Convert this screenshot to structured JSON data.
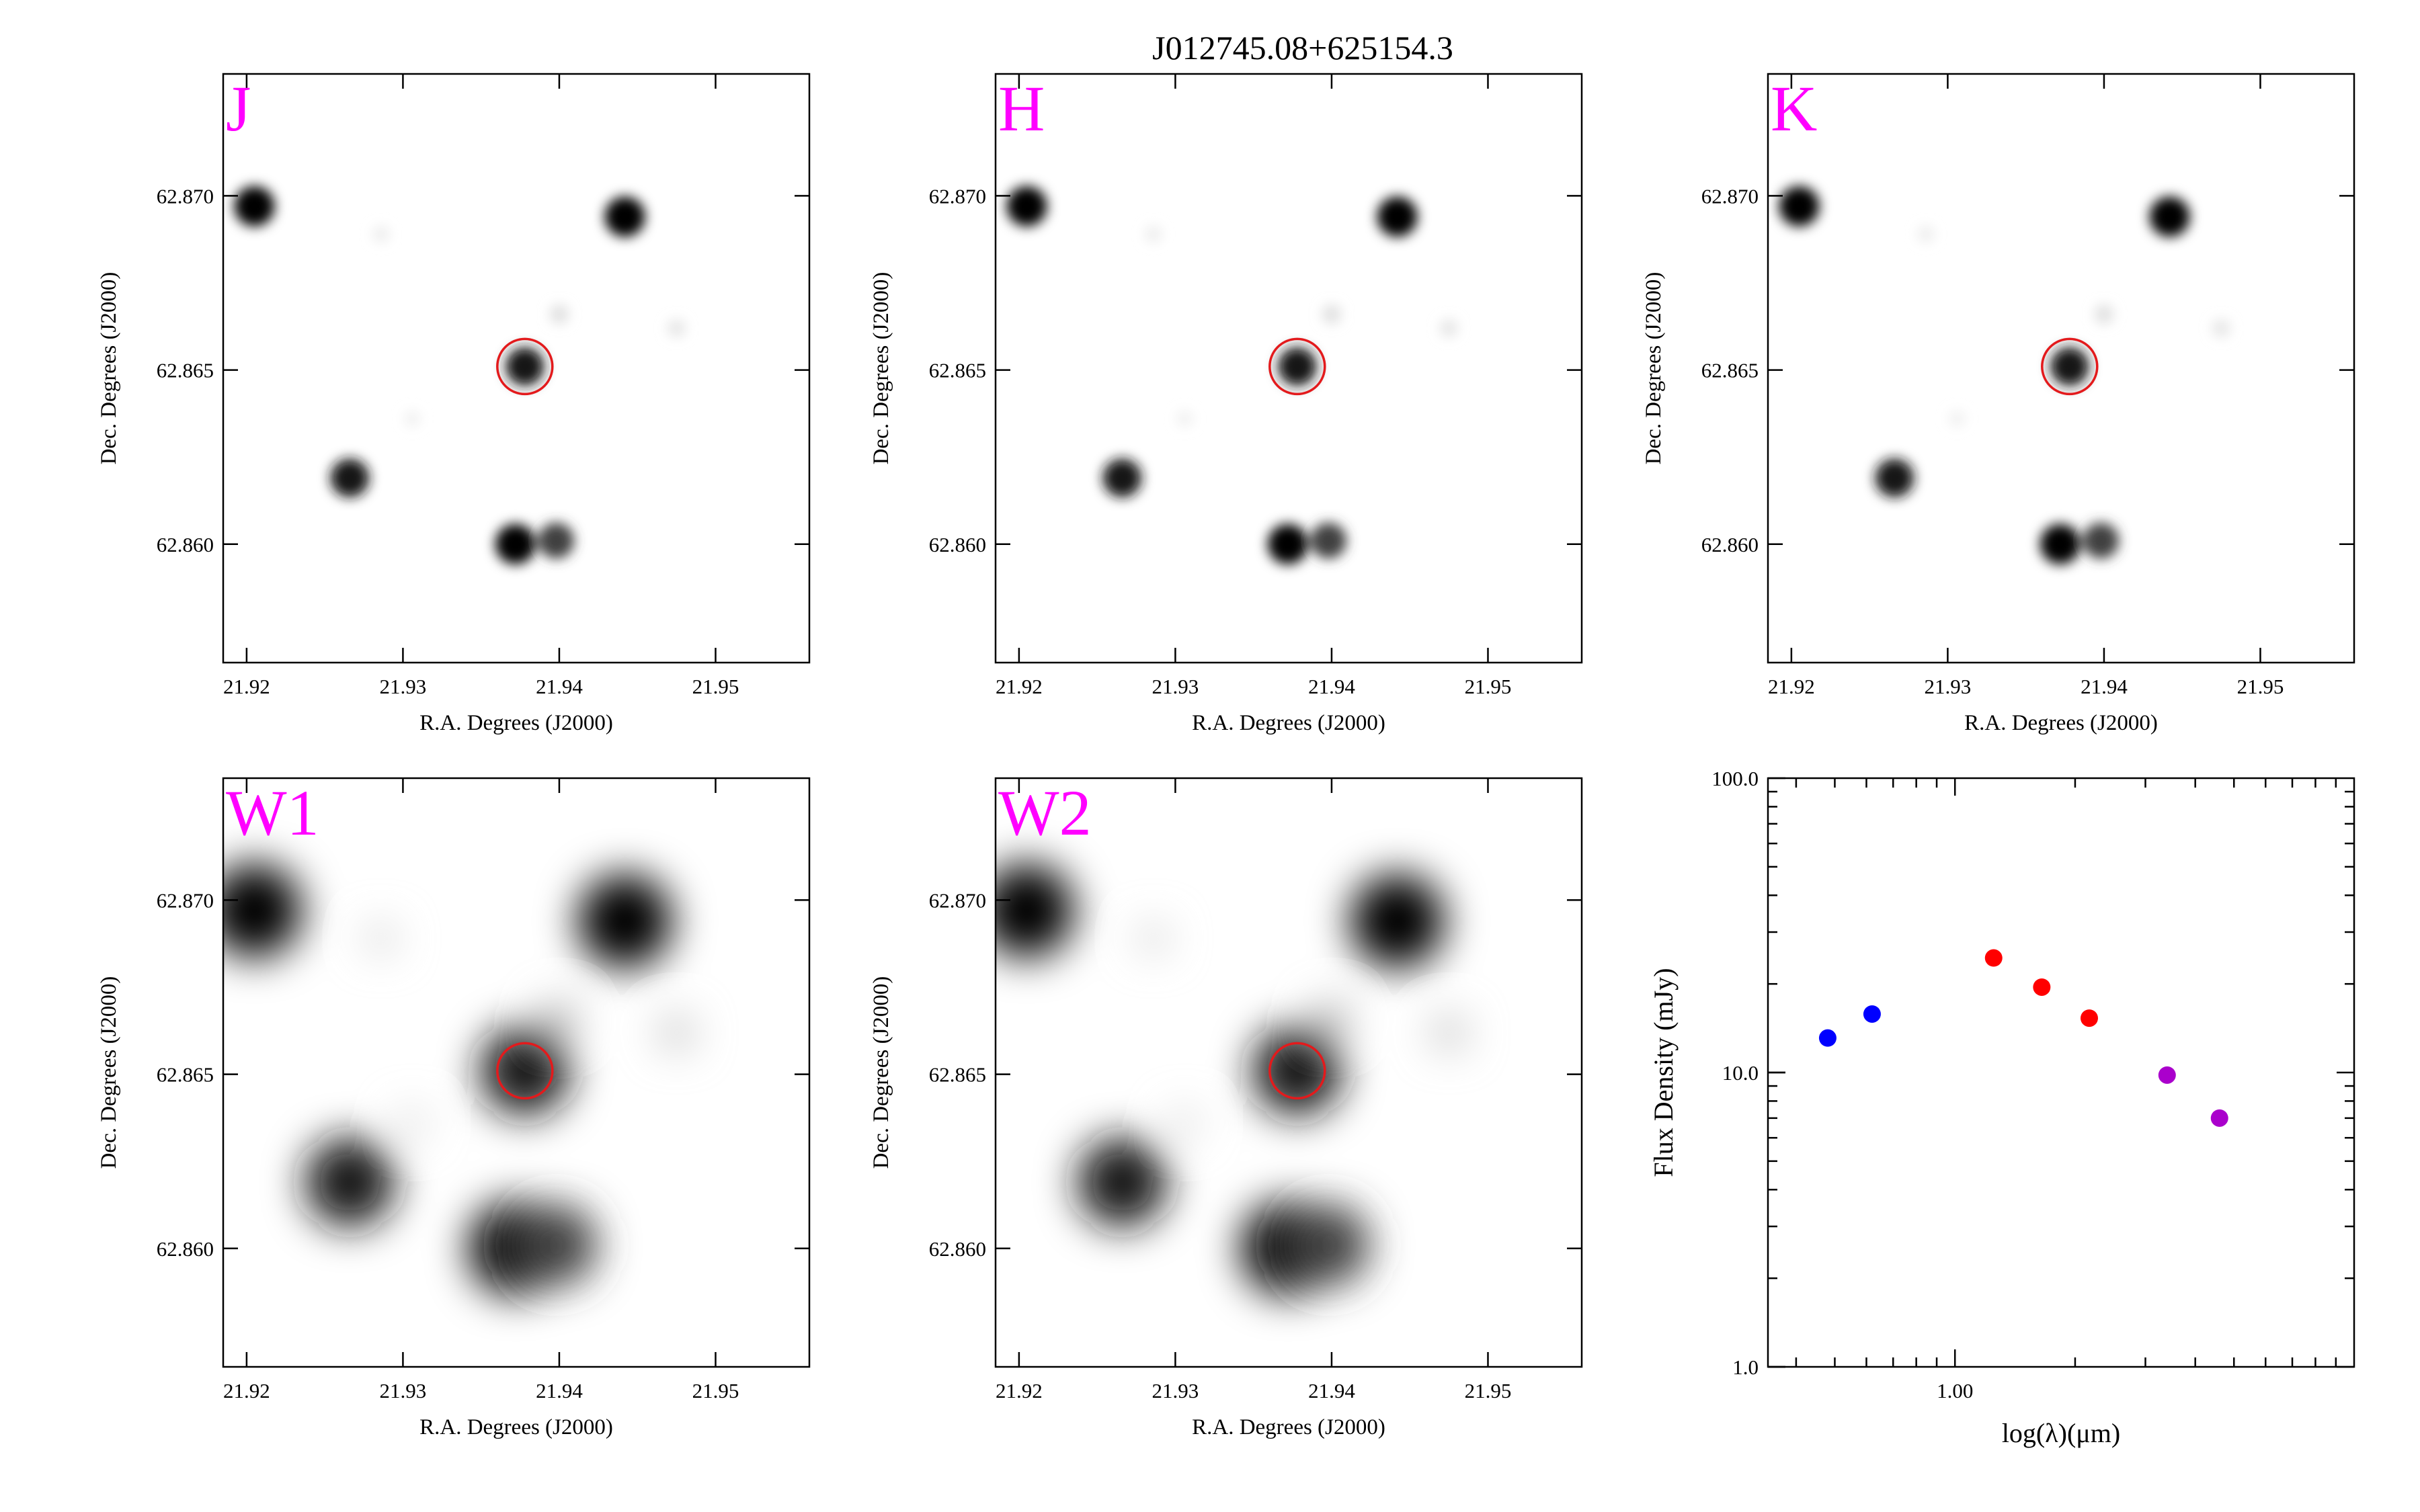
{
  "title": "J012745.08+625154.3",
  "colors": {
    "band_label": "#ff00ff",
    "target_circle": "#e31a1c",
    "blue": "#0000ff",
    "red": "#ff0000",
    "purple": "#aa00cc"
  },
  "image_axes": {
    "xlabel": "R.A. Degrees (J2000)",
    "ylabel": "Dec. Degrees (J2000)",
    "xlim": [
      21.9185,
      21.956
    ],
    "ylim": [
      62.8566,
      62.8735
    ],
    "xticks": [
      "21.92",
      "21.93",
      "21.94",
      "21.95"
    ],
    "yticks": [
      "62.860",
      "62.865",
      "62.870"
    ]
  },
  "target": {
    "ra": 21.9378,
    "dec": 62.8651
  },
  "panels": [
    {
      "band": "J",
      "type": "heatmap",
      "psf": "narrow"
    },
    {
      "band": "H",
      "type": "heatmap",
      "psf": "narrow"
    },
    {
      "band": "K",
      "type": "heatmap",
      "psf": "narrow"
    },
    {
      "band": "W1",
      "type": "heatmap",
      "psf": "wide"
    },
    {
      "band": "W2",
      "type": "heatmap",
      "psf": "wide"
    }
  ],
  "sources": [
    {
      "ra": 21.9205,
      "dec": 62.8697,
      "brightness": 1.0
    },
    {
      "ra": 21.9442,
      "dec": 62.8694,
      "brightness": 1.0
    },
    {
      "ra": 21.9378,
      "dec": 62.8651,
      "brightness": 0.9
    },
    {
      "ra": 21.9266,
      "dec": 62.8619,
      "brightness": 0.9
    },
    {
      "ra": 21.9372,
      "dec": 62.86,
      "brightness": 1.0
    },
    {
      "ra": 21.9398,
      "dec": 62.8601,
      "brightness": 0.75
    },
    {
      "ra": 21.94,
      "dec": 62.8666,
      "brightness": 0.12
    },
    {
      "ra": 21.9475,
      "dec": 62.8662,
      "brightness": 0.1
    },
    {
      "ra": 21.9286,
      "dec": 62.8689,
      "brightness": 0.07
    },
    {
      "ra": 21.9306,
      "dec": 62.8636,
      "brightness": 0.06
    }
  ],
  "chart_data": {
    "type": "scatter",
    "xlabel": "log(λ)(μm)",
    "ylabel": "Flux Density (mJy)",
    "xscale": "log",
    "yscale": "log",
    "xlim": [
      0.34,
      10.0
    ],
    "ylim": [
      1.0,
      100.0
    ],
    "xticks": [
      "1.00"
    ],
    "yticks": [
      "1.0",
      "10.0",
      "100.0"
    ],
    "series": [
      {
        "color": "#0000ff",
        "points": [
          {
            "x": 0.48,
            "y": 13.1
          },
          {
            "x": 0.62,
            "y": 15.8
          }
        ]
      },
      {
        "color": "#ff0000",
        "points": [
          {
            "x": 1.25,
            "y": 24.5
          },
          {
            "x": 1.65,
            "y": 19.5
          },
          {
            "x": 2.17,
            "y": 15.3
          }
        ]
      },
      {
        "color": "#aa00cc",
        "points": [
          {
            "x": 3.4,
            "y": 9.8
          },
          {
            "x": 4.6,
            "y": 7.0
          }
        ]
      }
    ]
  }
}
